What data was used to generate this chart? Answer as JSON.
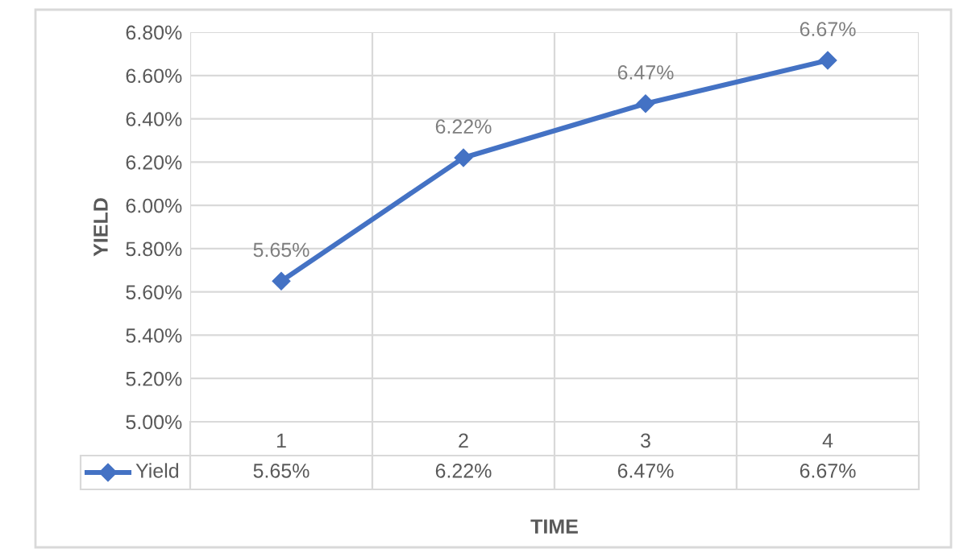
{
  "chart_data": {
    "type": "line",
    "xlabel": "TIME",
    "ylabel": "YIELD",
    "categories": [
      "1",
      "2",
      "3",
      "4"
    ],
    "series": [
      {
        "name": "Yield",
        "color": "#4472c4",
        "values": [
          5.65,
          6.22,
          6.47,
          6.67
        ],
        "value_labels": [
          "5.65%",
          "6.22%",
          "6.47%",
          "6.67%"
        ]
      }
    ],
    "ylim": [
      5.0,
      6.8
    ],
    "yticks": [
      {
        "value": 5.0,
        "label": "5.00%"
      },
      {
        "value": 5.2,
        "label": "5.20%"
      },
      {
        "value": 5.4,
        "label": "5.40%"
      },
      {
        "value": 5.6,
        "label": "5.60%"
      },
      {
        "value": 5.8,
        "label": "5.80%"
      },
      {
        "value": 6.0,
        "label": "6.00%"
      },
      {
        "value": 6.2,
        "label": "6.20%"
      },
      {
        "value": 6.4,
        "label": "6.40%"
      },
      {
        "value": 6.6,
        "label": "6.60%"
      },
      {
        "value": 6.8,
        "label": "6.80%"
      }
    ],
    "grid": "y",
    "marker": "diamond",
    "line_style": "solid"
  }
}
